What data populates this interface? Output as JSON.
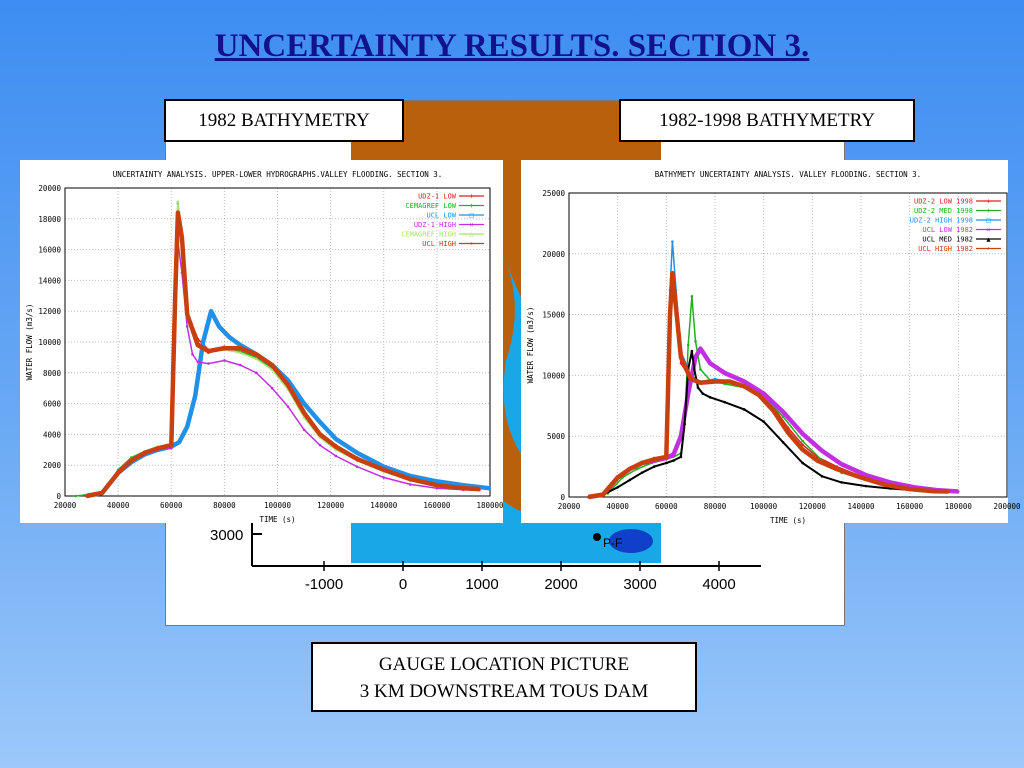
{
  "slide_title": "UNCERTAINTY RESULTS. SECTION 3.",
  "label_left": "1982 BATHYMETRY",
  "label_right": "1982-1998 BATHYMETRY",
  "caption_line1": "GAUGE LOCATION PICTURE",
  "caption_line2": "3 KM DOWNSTREAM TOUS DAM",
  "map": {
    "y_tick_label": "3000",
    "x_tick_labels": [
      "-1000",
      "0",
      "1000",
      "2000",
      "3000",
      "4000"
    ],
    "marker_label": "P-F",
    "colors": {
      "terrain": "#b8600c",
      "water": "#18a8e8",
      "deep": "#1040c8",
      "shallow": "#38d868"
    }
  },
  "chart_data": [
    {
      "type": "line",
      "title": "UNCERTAINTY ANALYSIS. UPPER-LOWER HYDROGRAPHS.VALLEY FLOODING. SECTION 3.",
      "xlabel": "TIME (s)",
      "ylabel": "WATER FLOW (m3/s)",
      "xlim": [
        20000,
        180000
      ],
      "ylim": [
        0,
        20000
      ],
      "xticks": [
        20000,
        40000,
        60000,
        80000,
        100000,
        120000,
        140000,
        160000,
        180000
      ],
      "yticks": [
        0,
        2000,
        4000,
        6000,
        8000,
        10000,
        12000,
        14000,
        16000,
        18000,
        20000
      ],
      "grid": true,
      "legend_position": "top-right",
      "series": [
        {
          "name": "UDZ-1 LOW",
          "color": "#e02020",
          "marker": "+",
          "width": 1.5,
          "x": [
            28000,
            34000,
            40000,
            45000,
            50000,
            55000,
            60000,
            61500,
            62500,
            64000,
            66000,
            70000,
            74000,
            80000,
            86000,
            92000,
            98000,
            104000,
            110000,
            116000,
            122000,
            130000,
            140000,
            150000,
            160000,
            170000,
            176000
          ],
          "y": [
            0,
            200,
            1500,
            2300,
            2800,
            3100,
            3300,
            14000,
            18200,
            16500,
            12000,
            10200,
            9500,
            9700,
            9500,
            9100,
            8500,
            7300,
            5500,
            4100,
            3300,
            2500,
            1700,
            1100,
            700,
            500,
            450
          ]
        },
        {
          "name": "CEMAGREF LOW",
          "color": "#20b020",
          "marker": "+",
          "width": 1.5,
          "x": [
            24000,
            34000,
            40000,
            45000,
            50000,
            55000,
            60000,
            61500,
            62500,
            64000,
            66000,
            70000,
            74000,
            80000,
            86000,
            92000,
            98000,
            104000,
            110000,
            116000,
            122000,
            130000,
            140000,
            150000,
            160000,
            170000,
            176000
          ],
          "y": [
            0,
            200,
            1700,
            2500,
            2900,
            3200,
            3400,
            15000,
            19000,
            16800,
            12000,
            10000,
            9300,
            9600,
            9400,
            9000,
            8300,
            7000,
            5200,
            3900,
            3100,
            2300,
            1600,
            1000,
            650,
            480,
            450
          ]
        },
        {
          "name": "UCL LOW",
          "color": "#2090e8",
          "marker": "□",
          "width": 4.5,
          "x": [
            28000,
            34000,
            40000,
            45000,
            50000,
            55000,
            60000,
            63000,
            66000,
            69000,
            72000,
            75000,
            78000,
            82000,
            86000,
            92000,
            98000,
            104000,
            110000,
            116000,
            122000,
            130000,
            140000,
            150000,
            160000,
            170000,
            180000
          ],
          "y": [
            0,
            200,
            1500,
            2200,
            2700,
            3000,
            3200,
            3500,
            4500,
            6500,
            10000,
            12000,
            11000,
            10300,
            9800,
            9200,
            8500,
            7500,
            6000,
            4800,
            3700,
            2800,
            1900,
            1300,
            950,
            700,
            500
          ]
        },
        {
          "name": "UDZ-1 HIGH",
          "color": "#c030e0",
          "marker": "×",
          "width": 1.5,
          "x": [
            28000,
            34000,
            40000,
            45000,
            50000,
            55000,
            60000,
            61500,
            62500,
            64000,
            66000,
            68000,
            70000,
            74000,
            80000,
            86000,
            92000,
            98000,
            104000,
            110000,
            116000,
            122000,
            130000,
            140000,
            150000,
            160000,
            170000,
            176000
          ],
          "y": [
            0,
            200,
            1500,
            2200,
            2700,
            3000,
            3100,
            12000,
            16500,
            14500,
            11000,
            9200,
            8700,
            8600,
            8800,
            8500,
            8000,
            7000,
            5800,
            4300,
            3300,
            2600,
            1900,
            1200,
            750,
            500,
            400,
            380
          ]
        },
        {
          "name": "CEMAGREF HIGH",
          "color": "#a8e070",
          "marker": "△",
          "width": 1.5,
          "x": [
            28000,
            34000,
            40000,
            45000,
            50000,
            55000,
            60000,
            61500,
            62500,
            64000,
            66000,
            70000,
            74000,
            80000,
            86000,
            92000,
            98000,
            104000,
            110000,
            116000,
            122000,
            130000,
            140000,
            150000,
            160000,
            170000,
            176000
          ],
          "y": [
            0,
            200,
            1600,
            2400,
            2900,
            3200,
            3400,
            15500,
            19100,
            16600,
            12000,
            9900,
            9400,
            9500,
            9300,
            8900,
            8200,
            6900,
            5100,
            3800,
            3000,
            2300,
            1600,
            1000,
            650,
            480,
            450
          ]
        },
        {
          "name": "UCL HIGH",
          "color": "#c84010",
          "marker": "•",
          "width": 4.5,
          "x": [
            28000,
            34000,
            40000,
            45000,
            50000,
            55000,
            60000,
            61500,
            62500,
            64000,
            66000,
            70000,
            74000,
            80000,
            86000,
            92000,
            98000,
            104000,
            110000,
            116000,
            122000,
            130000,
            140000,
            150000,
            160000,
            170000,
            176000
          ],
          "y": [
            0,
            200,
            1500,
            2300,
            2800,
            3100,
            3300,
            13000,
            18400,
            16800,
            11800,
            9800,
            9400,
            9600,
            9600,
            9200,
            8500,
            7200,
            5400,
            4000,
            3200,
            2400,
            1700,
            1100,
            700,
            500,
            450
          ]
        }
      ]
    },
    {
      "type": "line",
      "title": "BATHYMETY UNCERTAINTY ANALYSIS. VALLEY FLOODING. SECTION 3.",
      "xlabel": "TIME (s)",
      "ylabel": "WATER FLOW (m3/s)",
      "xlim": [
        20000,
        200000
      ],
      "ylim": [
        0,
        25000
      ],
      "xticks": [
        20000,
        40000,
        60000,
        80000,
        100000,
        120000,
        140000,
        160000,
        180000,
        200000
      ],
      "yticks": [
        0,
        5000,
        10000,
        15000,
        20000,
        25000
      ],
      "grid": true,
      "legend_position": "top-right",
      "series": [
        {
          "name": "UDZ-2 LOW 1998",
          "color": "#e02020",
          "marker": "+",
          "width": 1.5,
          "x": [
            28000,
            34000,
            40000,
            45000,
            50000,
            55000,
            60000,
            61500,
            62500,
            64000,
            66000,
            70000,
            74000,
            80000,
            86000,
            92000,
            98000,
            104000,
            110000,
            116000,
            122000,
            130000,
            140000,
            150000,
            160000,
            170000,
            176000
          ],
          "y": [
            0,
            200,
            1700,
            2400,
            2900,
            3200,
            3400,
            16000,
            18500,
            15000,
            11000,
            9700,
            9500,
            9600,
            9500,
            9100,
            8500,
            7400,
            5700,
            4300,
            3300,
            2500,
            1700,
            1100,
            700,
            500,
            450
          ]
        },
        {
          "name": "UDZ-2 MED 1998",
          "color": "#20b020",
          "marker": "+",
          "width": 1.5,
          "x": [
            30000,
            36000,
            42000,
            48000,
            54000,
            60000,
            63000,
            66000,
            67500,
            69000,
            70500,
            72000,
            74000,
            78000,
            84000,
            92000,
            100000,
            108000,
            116000,
            124000,
            132000,
            142000,
            152000,
            162000,
            172000
          ],
          "y": [
            0,
            300,
            1600,
            2300,
            2800,
            3100,
            3300,
            3600,
            6000,
            12500,
            16500,
            12800,
            10500,
            9600,
            9300,
            9000,
            8300,
            6600,
            4600,
            3000,
            2000,
            1400,
            1000,
            700,
            500
          ]
        },
        {
          "name": "UDZ-2 HIGH 1998",
          "color": "#2090e8",
          "marker": "□",
          "width": 1.5,
          "x": [
            28000,
            34000,
            40000,
            45000,
            50000,
            55000,
            60000,
            61500,
            62500,
            64000,
            66000,
            70000,
            74000,
            80000,
            86000,
            92000,
            98000,
            104000,
            110000,
            116000,
            122000,
            130000,
            140000,
            150000,
            160000,
            170000,
            176000
          ],
          "y": [
            0,
            200,
            1700,
            2400,
            2900,
            3200,
            3400,
            17000,
            21000,
            17000,
            12000,
            10000,
            9500,
            9700,
            9500,
            9100,
            8400,
            7200,
            5400,
            4000,
            3100,
            2400,
            1600,
            1000,
            650,
            480,
            450
          ]
        },
        {
          "name": "UCL LOW 1982",
          "color": "#c030e0",
          "marker": "×",
          "width": 4.5,
          "x": [
            28000,
            34000,
            40000,
            45000,
            50000,
            55000,
            60000,
            63000,
            66000,
            69000,
            72000,
            74000,
            78000,
            84000,
            92000,
            100000,
            108000,
            116000,
            124000,
            132000,
            142000,
            152000,
            162000,
            172000,
            180000
          ],
          "y": [
            0,
            200,
            1600,
            2300,
            2800,
            3000,
            3200,
            3500,
            5000,
            8500,
            11500,
            12200,
            11000,
            10200,
            9500,
            8500,
            7000,
            5200,
            3800,
            2700,
            1800,
            1200,
            800,
            550,
            450
          ]
        },
        {
          "name": "UCL MED 1982",
          "color": "#000000",
          "marker": "▲",
          "width": 2,
          "x": [
            28000,
            34000,
            40000,
            45000,
            50000,
            55000,
            60000,
            63000,
            66000,
            67500,
            69000,
            70500,
            71500,
            73000,
            75000,
            78000,
            84000,
            92000,
            100000,
            108000,
            116000,
            124000,
            132000,
            142000,
            152000,
            162000,
            172000
          ],
          "y": [
            0,
            200,
            800,
            1400,
            2000,
            2500,
            2800,
            3000,
            3300,
            6000,
            10500,
            12000,
            10500,
            9000,
            8500,
            8200,
            7800,
            7200,
            6200,
            4500,
            2800,
            1700,
            1200,
            900,
            700,
            550,
            500
          ]
        },
        {
          "name": "UCL HIGH 1982",
          "color": "#c84010",
          "marker": "•",
          "width": 4.5,
          "x": [
            28000,
            34000,
            40000,
            45000,
            50000,
            55000,
            60000,
            61500,
            62500,
            64000,
            66000,
            70000,
            74000,
            80000,
            86000,
            92000,
            98000,
            104000,
            110000,
            116000,
            122000,
            130000,
            140000,
            150000,
            160000,
            170000,
            176000
          ],
          "y": [
            0,
            200,
            1600,
            2300,
            2800,
            3100,
            3300,
            15000,
            18400,
            15500,
            11500,
            9700,
            9400,
            9500,
            9500,
            9100,
            8400,
            7100,
            5300,
            3900,
            3000,
            2300,
            1600,
            1000,
            650,
            480,
            450
          ]
        }
      ]
    }
  ]
}
